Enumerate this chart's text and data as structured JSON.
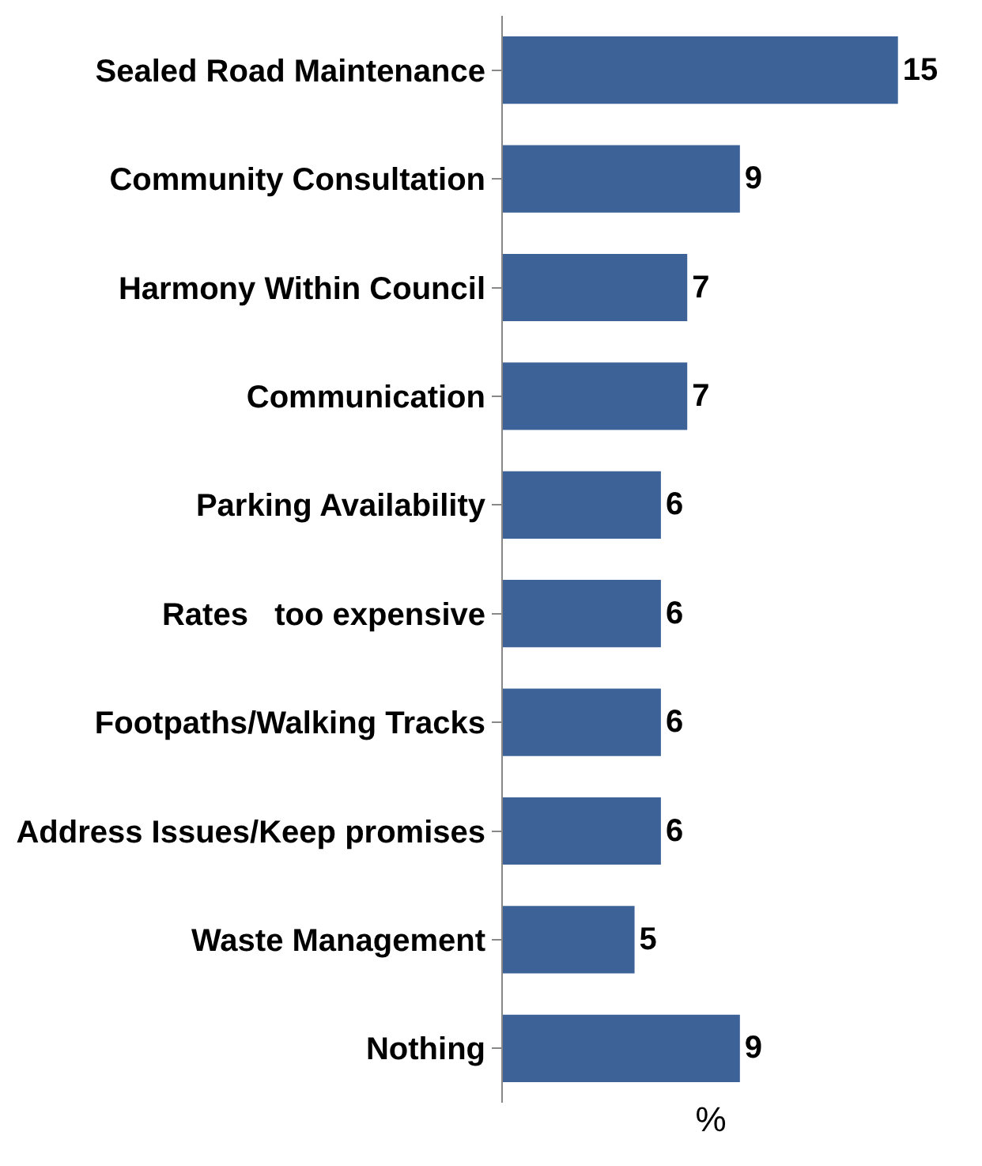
{
  "chart_data": {
    "type": "bar",
    "orientation": "horizontal",
    "xlabel": "%",
    "categories": [
      "Sealed Road Maintenance",
      "Community Consultation",
      "Harmony Within Council",
      "Communication",
      "Parking Availability",
      "Rates   too expensive",
      "Footpaths/Walking Tracks",
      "Address Issues/Keep promises",
      "Waste Management",
      "Nothing"
    ],
    "values": [
      15,
      9,
      7,
      7,
      6,
      6,
      6,
      6,
      5,
      9
    ],
    "color": "#3c6297",
    "data_labels": true,
    "tick_labels": "y",
    "grid": false,
    "legend": false
  }
}
